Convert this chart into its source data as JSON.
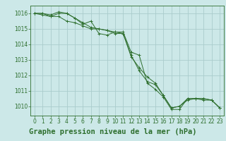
{
  "title": "Graphe pression niveau de la mer (hPa)",
  "bg_color": "#cce8e8",
  "plot_bg_color": "#cce8e8",
  "grid_color": "#aacccc",
  "line_color": "#2d6e2d",
  "title_bg_color": "#2d6e2d",
  "title_text_color": "#ffffff",
  "xlim": [
    -0.5,
    23.5
  ],
  "ylim": [
    1009.4,
    1016.5
  ],
  "yticks": [
    1010,
    1011,
    1012,
    1013,
    1014,
    1015,
    1016
  ],
  "xticks": [
    0,
    1,
    2,
    3,
    4,
    5,
    6,
    7,
    8,
    9,
    10,
    11,
    12,
    13,
    14,
    15,
    16,
    17,
    18,
    19,
    20,
    21,
    22,
    23
  ],
  "series": [
    [
      1016.0,
      1016.0,
      1015.8,
      1016.0,
      1016.0,
      1015.7,
      1015.4,
      1015.1,
      1015.0,
      1014.9,
      1014.8,
      1014.8,
      1013.5,
      1013.3,
      1011.5,
      1011.1,
      1010.6,
      1009.8,
      1009.8,
      1010.5,
      1010.5,
      1010.5,
      1010.4,
      1009.9
    ],
    [
      1016.0,
      1016.0,
      1015.9,
      1016.1,
      1016.0,
      1015.7,
      1015.3,
      1015.5,
      1014.7,
      1014.6,
      1014.8,
      1014.7,
      1013.2,
      1012.5,
      1011.9,
      1011.5,
      1010.7,
      1009.9,
      1010.0,
      1010.5,
      1010.5,
      1010.5,
      1010.4,
      1009.9
    ],
    [
      1016.0,
      1015.9,
      1015.8,
      1015.8,
      1015.5,
      1015.4,
      1015.2,
      1015.0,
      1015.0,
      1014.9,
      1014.7,
      1014.7,
      1013.3,
      1012.3,
      1011.6,
      1011.4,
      1010.7,
      1009.9,
      1010.0,
      1010.4,
      1010.5,
      1010.4,
      1010.4,
      1009.9
    ]
  ],
  "tick_fontsize": 5.5,
  "title_fontsize": 7.5
}
